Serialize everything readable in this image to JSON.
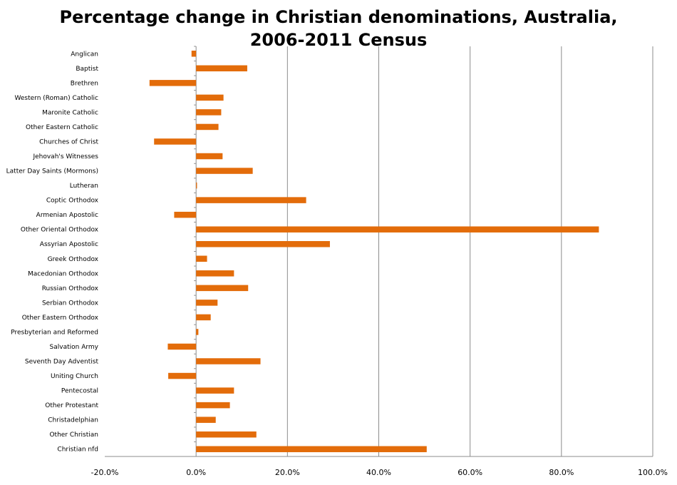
{
  "chart_data": {
    "type": "bar",
    "orientation": "horizontal",
    "title_lines": [
      "Percentage change in Christian denominations, Australia,",
      "2006-2011 Census"
    ],
    "categories": [
      "Anglican",
      "Baptist",
      "Brethren",
      "Western (Roman) Catholic",
      "Maronite Catholic",
      "Other Eastern Catholic",
      "Churches of Christ",
      "Jehovah's Witnesses",
      "Latter Day Saints (Mormons)",
      "Lutheran",
      "Coptic Orthodox",
      "Armenian Apostolic",
      "Other Oriental Orthodox",
      "Assyrian Apostolic",
      "Greek Orthodox",
      "Macedonian Orthodox",
      "Russian Orthodox",
      "Serbian Orthodox",
      "Other Eastern Orthodox",
      "Presbyterian and Reformed",
      "Salvation Army",
      "Seventh Day Adventist",
      "Uniting Church",
      "Pentecostal",
      "Other Protestant",
      "Christadelphian",
      "Other Christian",
      "Christian nfd"
    ],
    "values": [
      -1.0,
      11.2,
      -10.2,
      6.0,
      5.5,
      4.9,
      -9.2,
      5.8,
      12.4,
      0.2,
      24.1,
      -4.8,
      88.2,
      29.3,
      2.4,
      8.3,
      11.4,
      4.7,
      3.2,
      0.5,
      -6.2,
      14.1,
      -6.1,
      8.3,
      7.4,
      4.3,
      13.2,
      50.5
    ],
    "xlim": [
      -20,
      100
    ],
    "xticks": [
      -20,
      0,
      20,
      40,
      60,
      80,
      100
    ],
    "xtick_labels": [
      "-20.0%",
      "0.0%",
      "20.0%",
      "40.0%",
      "60.0%",
      "80.0%",
      "100.0%"
    ],
    "grid": "vertical major gridlines",
    "legend": "none",
    "bar_color": "#E36C0A"
  }
}
